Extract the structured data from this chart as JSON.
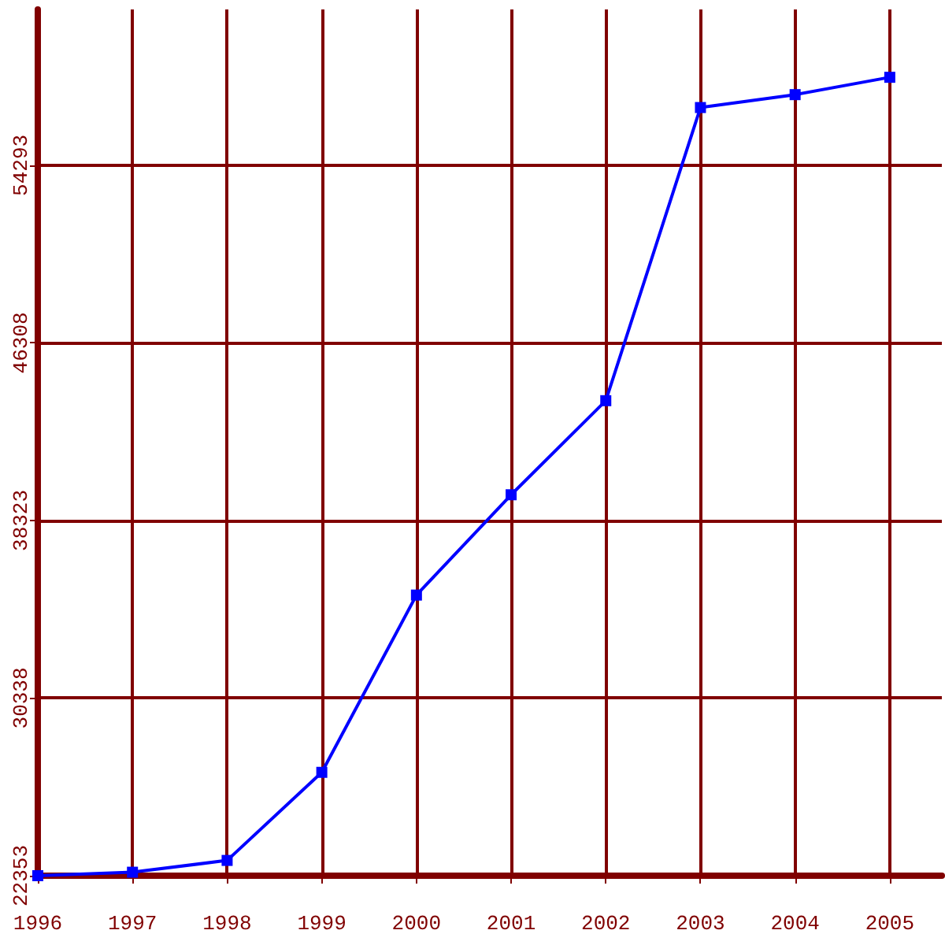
{
  "chart_data": {
    "type": "line",
    "x": [
      1996,
      1997,
      1998,
      1999,
      2000,
      2001,
      2002,
      2003,
      2004,
      2005
    ],
    "series": [
      {
        "color": "#0000ff",
        "values": [
          22353,
          22510,
          23040,
          27000,
          34970,
          39480,
          43710,
          56890,
          57470,
          58250
        ]
      }
    ],
    "xlim": [
      1996,
      2005.55
    ],
    "xticks": [
      1996,
      1997,
      1998,
      1999,
      2000,
      2001,
      2002,
      2003,
      2004,
      2005
    ],
    "ylim": [
      22353,
      61300
    ],
    "yticks": [
      22353,
      30338,
      38323,
      46308,
      54293
    ],
    "grid": true,
    "marker": "square",
    "line_style": "solid"
  }
}
